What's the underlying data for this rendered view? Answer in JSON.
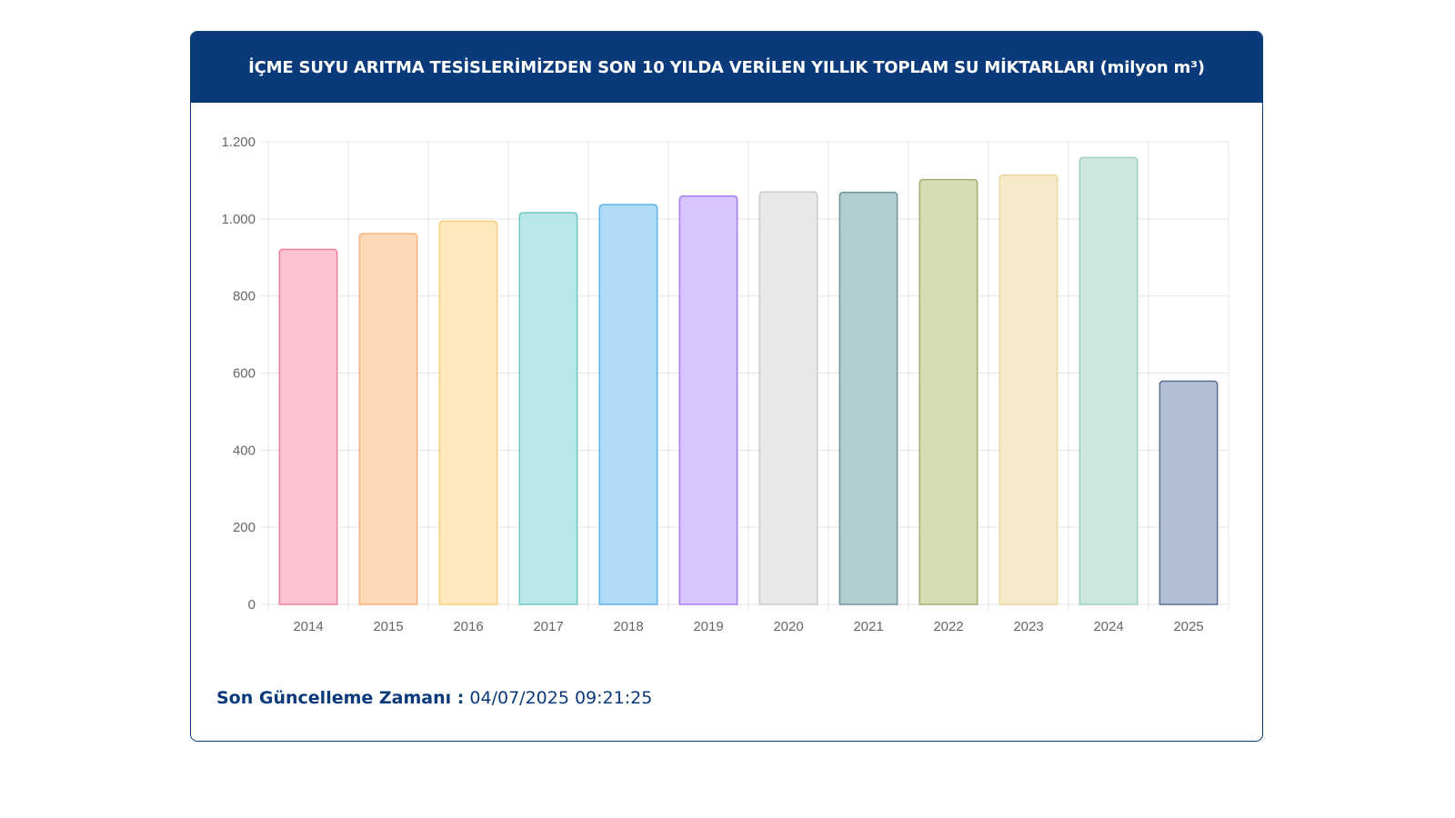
{
  "card": {
    "title": "İÇME SUYU ARITMA TESİSLERİMİZDEN SON 10 YILDA VERİLEN YILLIK TOPLAM SU MİKTARLARI (milyon m³)"
  },
  "footer": {
    "label": "Son Güncelleme Zamanı :",
    "value": "04/07/2025 09:21:25"
  },
  "colors": {
    "header_bg": "#0b3a7a",
    "grid": "#e4e4e4",
    "tick_text": "#666666"
  },
  "chart_data": {
    "type": "bar",
    "title": "İÇME SUYU ARITMA TESİSLERİMİZDEN SON 10 YILDA VERİLEN YILLIK TOPLAM SU MİKTARLARI (milyon m³)",
    "xlabel": "",
    "ylabel": "",
    "ylim": [
      0,
      1200
    ],
    "yticks": [
      0,
      200,
      400,
      600,
      800,
      1000,
      1200
    ],
    "ytick_labels": [
      "0",
      "200",
      "400",
      "600",
      "800",
      "1.000",
      "1.200"
    ],
    "grid": true,
    "categories": [
      "2014",
      "2015",
      "2016",
      "2017",
      "2018",
      "2019",
      "2020",
      "2021",
      "2022",
      "2023",
      "2024",
      "2025"
    ],
    "values": [
      921,
      962,
      994,
      1016,
      1037,
      1059,
      1070,
      1069,
      1102,
      1114,
      1159,
      579
    ],
    "fill_colors": [
      "#fdc3d2",
      "#fdd9b6",
      "#fee9bd",
      "#b9e6e6",
      "#b0dbf8",
      "#d8c4fe",
      "#e8e8ea",
      "#b1cdd1",
      "#d7dcb3",
      "#f7eacb",
      "#cde6de",
      "#b1bfd2"
    ],
    "stroke_colors": [
      "#ef7f9c",
      "#f6b27c",
      "#f5cf7a",
      "#6fcaca",
      "#5eb0e5",
      "#a97ef5",
      "#c9c9cc",
      "#6f959b",
      "#a4ac72",
      "#edd69b",
      "#9ccfc0",
      "#5b6f95"
    ]
  }
}
